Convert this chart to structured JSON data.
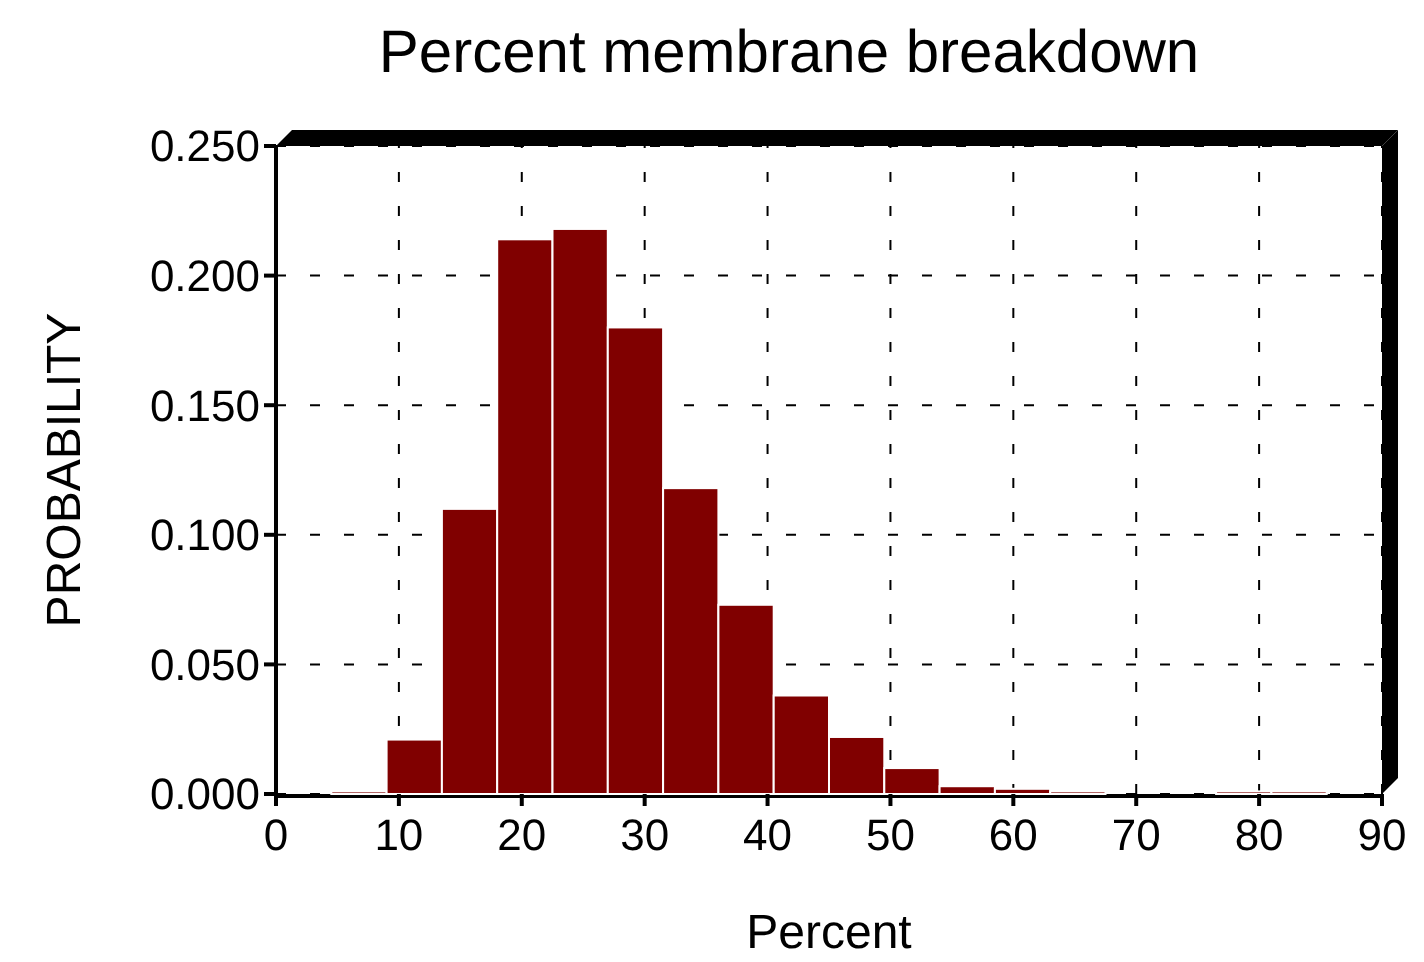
{
  "chart_data": {
    "type": "histogram",
    "title": "Percent membrane breakdown",
    "xlabel": "Percent",
    "ylabel": "PROBABILITY",
    "bins": [
      4.5,
      9,
      13.5,
      18,
      22.5,
      27,
      31.5,
      36,
      40.5,
      45,
      49.5,
      54,
      58.5,
      63,
      67.5,
      72,
      76.5,
      81,
      85.5
    ],
    "values": [
      0.001,
      0.021,
      0.11,
      0.214,
      0.218,
      0.18,
      0.118,
      0.073,
      0.038,
      0.022,
      0.01,
      0.003,
      0.002,
      0.001,
      0,
      0,
      0.001,
      0.001
    ],
    "color": "#800000",
    "xlim": [
      0,
      90
    ],
    "xticks": [
      0,
      10,
      20,
      30,
      40,
      50,
      60,
      70,
      80,
      90
    ],
    "ylim": [
      0,
      0.25
    ],
    "yticks": [
      {
        "value": 0,
        "label": "0.000"
      },
      {
        "value": 0.05,
        "label": "0.050"
      },
      {
        "value": 0.1,
        "label": "0.100"
      },
      {
        "value": 0.15,
        "label": "0.150"
      },
      {
        "value": 0.2,
        "label": "0.200"
      },
      {
        "value": 0.25,
        "label": "0.250"
      }
    ],
    "grid": true
  }
}
